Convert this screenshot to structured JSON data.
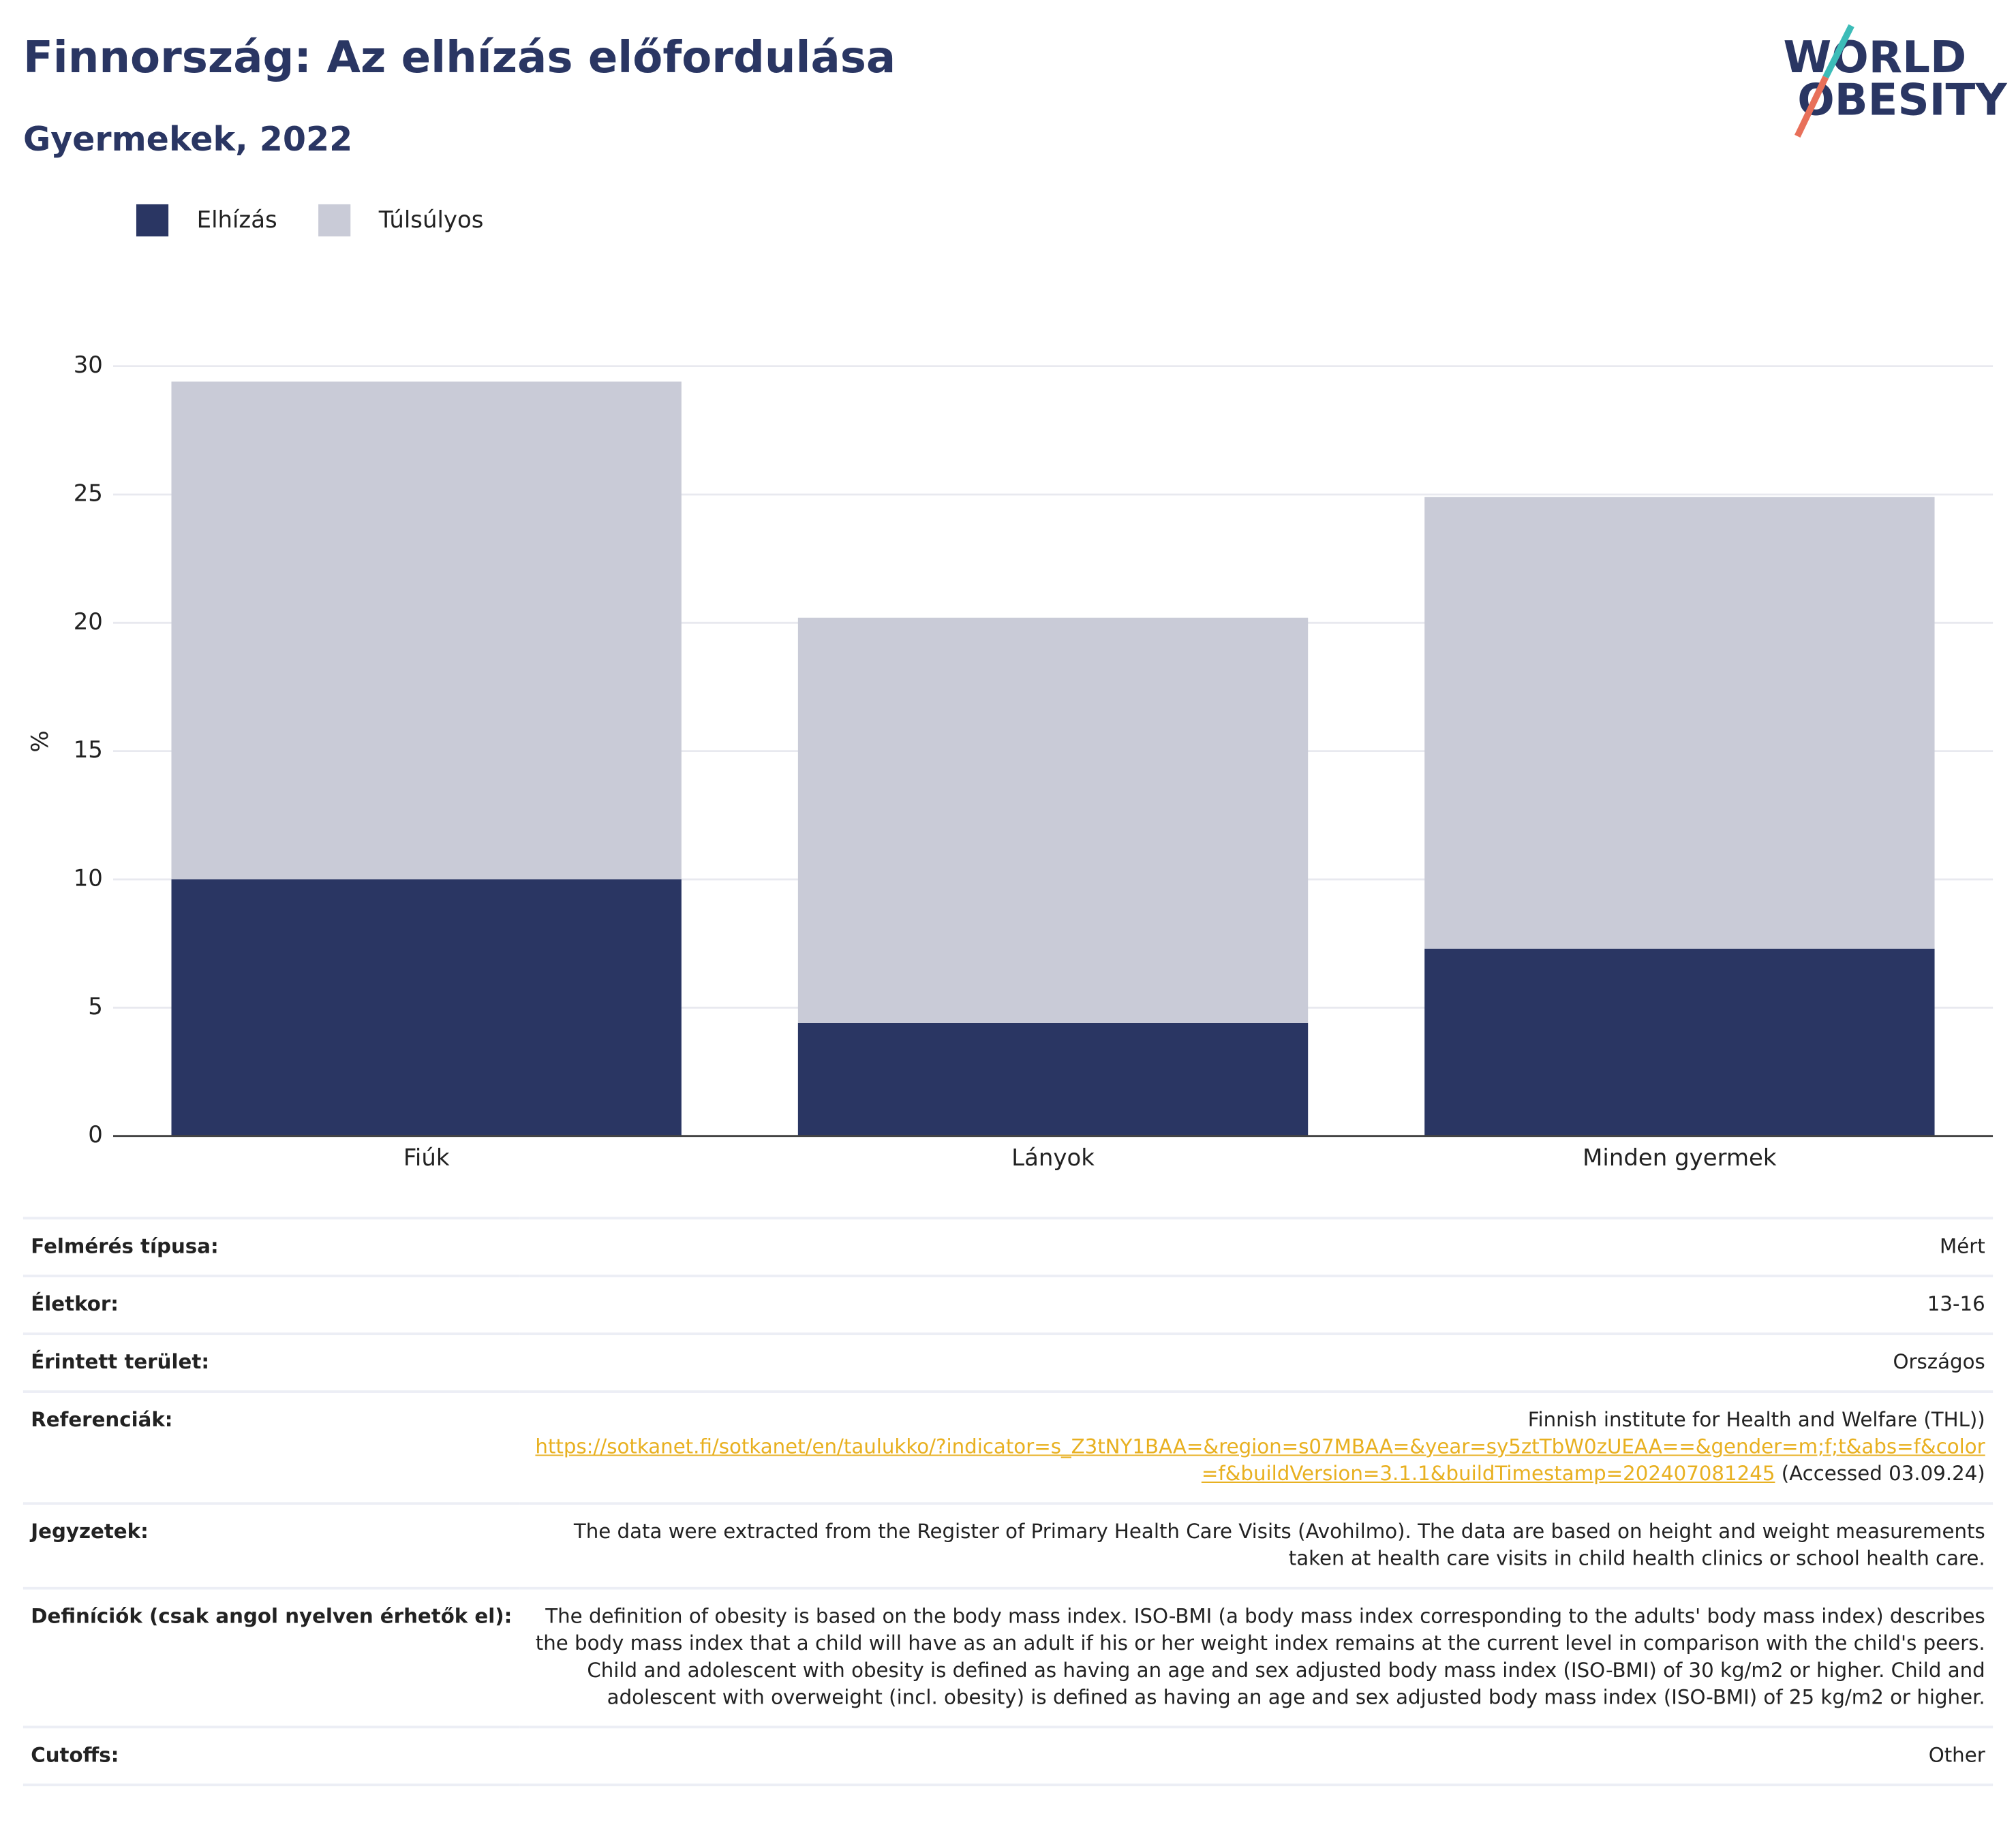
{
  "chart_data": {
    "type": "stacked_bar",
    "title": "Finnország: Az elhízás előfordulása",
    "subtitle": "Gyermekek, 2022",
    "y_label": "%",
    "categories": [
      "Fiúk",
      "Lányok",
      "Minden gyermek"
    ],
    "series": [
      {
        "name": "Elhízás",
        "color": "#2a3663",
        "values": [
          10,
          4.4,
          7.3
        ]
      },
      {
        "name": "Túlsúlyos",
        "color": "#c9cbd7",
        "values": [
          19.4,
          15.8,
          17.6
        ]
      }
    ],
    "ylim": [
      0,
      30
    ],
    "yticks": [
      0,
      5,
      10,
      15,
      20,
      25,
      30
    ],
    "grid": true,
    "legend": "top-left"
  },
  "logo": [
    "WORLD",
    "OBESITY"
  ],
  "table": {
    "rows": [
      {
        "label": "Felmérés típusa:",
        "value": "Mért"
      },
      {
        "label": "Életkor:",
        "value": "13-16"
      },
      {
        "label": "Érintett terület:",
        "value": "Országos"
      },
      {
        "label": "Referenciák:",
        "source": "Finnish institute for Health and Welfare (THL))",
        "url": "https://sotkanet.fi/sotkanet/en/taulukko/?indicator=s_Z3tNY1BAA=&region=s07MBAA=&year=sy5ztTbW0zUEAA==&gender=m;f;t&abs=f&color=f&buildVersion=3.1.1&buildTimestamp=202407081245",
        "accessed": "(Accessed 03.09.24)"
      },
      {
        "label": "Jegyzetek:",
        "value": "The data were extracted from the Register of Primary Health Care Visits (Avohilmo). The data are based on height and weight measurements taken at health care visits in child health clinics or school health care."
      },
      {
        "label": "Definíciók (csak angol nyelven érhetők el):",
        "value": "The definition of obesity is based on the body mass index. ISO-BMI (a body mass index corresponding to the adults' body mass index) describes the body mass index that a child will have as an adult if his or her weight index remains at the current level in comparison with the child's peers. Child and adolescent with obesity is defined as having an age and sex adjusted body mass index (ISO-BMI) of 30 kg/m2 or higher. Child and adolescent with overweight (incl. obesity) is defined as having an age and sex adjusted body mass index (ISO-BMI) of 25 kg/m2 or higher."
      },
      {
        "label": "Cutoffs:",
        "value": "Other"
      }
    ]
  }
}
